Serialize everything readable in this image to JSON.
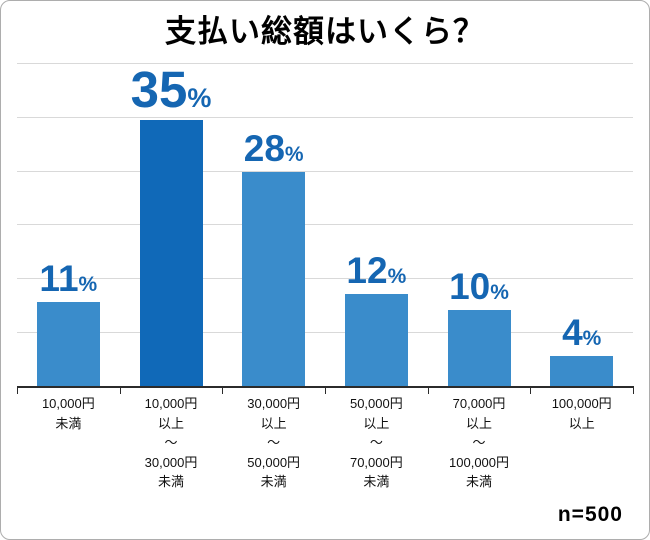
{
  "title": "支払い総額はいくら？",
  "footnote": "n=500",
  "colors": {
    "bar": "#3a8ccb",
    "bar_highlight": "#1069b8",
    "value_label": "#1566b2",
    "gridline": "#d9d9d9"
  },
  "chart_data": {
    "type": "bar",
    "title": "支払い総額はいくら？",
    "categories": [
      "10,000円\n未満",
      "10,000円\n以上\n～\n30,000円\n未満",
      "30,000円\n以上\n～\n50,000円\n未満",
      "50,000円\n以上\n～\n70,000円\n未満",
      "70,000円\n以上\n～\n100,000円\n未満",
      "100,000円\n以上"
    ],
    "values": [
      11,
      35,
      28,
      12,
      10,
      4
    ],
    "unit": "%",
    "highlight_index": 1,
    "xlabel": "",
    "ylabel": "",
    "ylim": [
      0,
      42
    ],
    "grid_step": 7,
    "grid": true,
    "legend": false,
    "sample_size": "n=500"
  }
}
